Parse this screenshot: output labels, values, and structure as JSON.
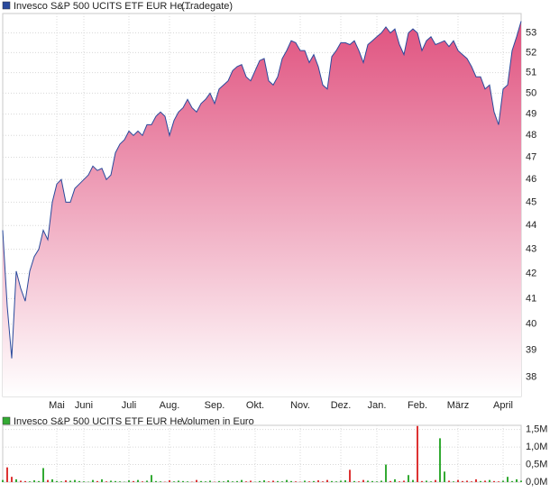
{
  "chart_data": [
    {
      "type": "area",
      "log_scale": true,
      "grid": true,
      "series": [
        {
          "name": "Invesco S&P 500 UCITS ETF EUR He...",
          "color": "#2a4a9c",
          "fill": "#e0527f",
          "values": [
            43.8,
            40.7,
            38.7,
            42.1,
            41.4,
            40.9,
            42.1,
            42.7,
            43.0,
            43.8,
            43.4,
            45.0,
            45.8,
            46.0,
            45.0,
            45.0,
            45.6,
            45.8,
            46.0,
            46.2,
            46.6,
            46.4,
            46.5,
            46.0,
            46.2,
            47.2,
            47.6,
            47.8,
            48.2,
            48.0,
            48.2,
            48.0,
            48.5,
            48.5,
            48.9,
            49.1,
            48.9,
            48.0,
            48.7,
            49.1,
            49.3,
            49.7,
            49.3,
            49.1,
            49.5,
            49.7,
            50.0,
            49.5,
            50.2,
            50.4,
            50.6,
            51.1,
            51.3,
            51.4,
            50.8,
            50.6,
            51.1,
            51.6,
            51.7,
            50.6,
            50.4,
            50.8,
            51.7,
            52.1,
            52.6,
            52.5,
            52.1,
            52.1,
            51.5,
            51.9,
            51.3,
            50.4,
            50.2,
            51.8,
            52.1,
            52.5,
            52.5,
            52.4,
            52.6,
            52.1,
            51.5,
            52.4,
            52.6,
            52.8,
            53.0,
            53.3,
            53.0,
            53.2,
            52.4,
            51.9,
            53.0,
            53.2,
            53.0,
            52.1,
            52.6,
            52.8,
            52.4,
            52.5,
            52.6,
            52.3,
            52.6,
            52.1,
            51.9,
            51.7,
            51.3,
            50.8,
            50.8,
            50.2,
            50.4,
            49.1,
            48.5,
            50.2,
            50.4,
            52.1,
            52.8,
            53.6
          ]
        }
      ],
      "source": "(Tradegate)",
      "xlim": [
        0,
        115
      ],
      "xticks": [
        {
          "value": 12,
          "label": "Mai"
        },
        {
          "value": 18,
          "label": "Juni"
        },
        {
          "value": 28,
          "label": "Juli"
        },
        {
          "value": 37,
          "label": "Aug."
        },
        {
          "value": 47,
          "label": "Sep."
        },
        {
          "value": 56,
          "label": "Okt."
        },
        {
          "value": 66,
          "label": "Nov."
        },
        {
          "value": 75,
          "label": "Dez."
        },
        {
          "value": 83,
          "label": "Jan."
        },
        {
          "value": 92,
          "label": "Feb."
        },
        {
          "value": 101,
          "label": "März"
        },
        {
          "value": 111,
          "label": "April"
        }
      ],
      "ylim": [
        37.3,
        54
      ],
      "yticks": [
        38,
        39,
        40,
        41,
        42,
        43,
        44,
        45,
        46,
        47,
        48,
        49,
        50,
        51,
        52,
        53
      ]
    },
    {
      "type": "bar",
      "grid": true,
      "series": [
        {
          "name": "Invesco S&P 500 UCITS ETF EUR He...",
          "color": "#33aa33",
          "values": [
            60000,
            420000,
            150000,
            80000,
            40000,
            30000,
            20000,
            50000,
            30000,
            400000,
            60000,
            80000,
            30000,
            20000,
            50000,
            40000,
            60000,
            30000,
            20000,
            10000,
            60000,
            30000,
            80000,
            20000,
            40000,
            30000,
            20000,
            10000,
            50000,
            30000,
            60000,
            20000,
            40000,
            200000,
            30000,
            20000,
            10000,
            50000,
            20000,
            40000,
            30000,
            20000,
            10000,
            60000,
            30000,
            20000,
            40000,
            10000,
            30000,
            20000,
            50000,
            20000,
            30000,
            60000,
            20000,
            40000,
            10000,
            30000,
            50000,
            20000,
            40000,
            30000,
            20000,
            60000,
            30000,
            20000,
            10000,
            40000,
            20000,
            30000,
            50000,
            20000,
            60000,
            30000,
            20000,
            40000,
            50000,
            350000,
            30000,
            20000,
            60000,
            40000,
            30000,
            20000,
            40000,
            500000,
            30000,
            80000,
            20000,
            40000,
            200000,
            60000,
            1600000,
            30000,
            40000,
            20000,
            60000,
            1250000,
            300000,
            40000,
            20000,
            60000,
            30000,
            40000,
            20000,
            80000,
            30000,
            40000,
            60000,
            30000,
            20000,
            40000,
            150000,
            30000,
            80000,
            40000
          ]
        }
      ],
      "up_color": "#33aa33",
      "down_color": "#dd3333",
      "legend": "Volumen in Euro",
      "xlim": [
        0,
        115
      ],
      "ylim": [
        0,
        1620000
      ],
      "yticks": [
        {
          "value": 0,
          "label": "0,0M"
        },
        {
          "value": 500000,
          "label": "0,5M"
        },
        {
          "value": 1000000,
          "label": "1,0M"
        },
        {
          "value": 1500000,
          "label": "1,5M"
        }
      ]
    }
  ]
}
